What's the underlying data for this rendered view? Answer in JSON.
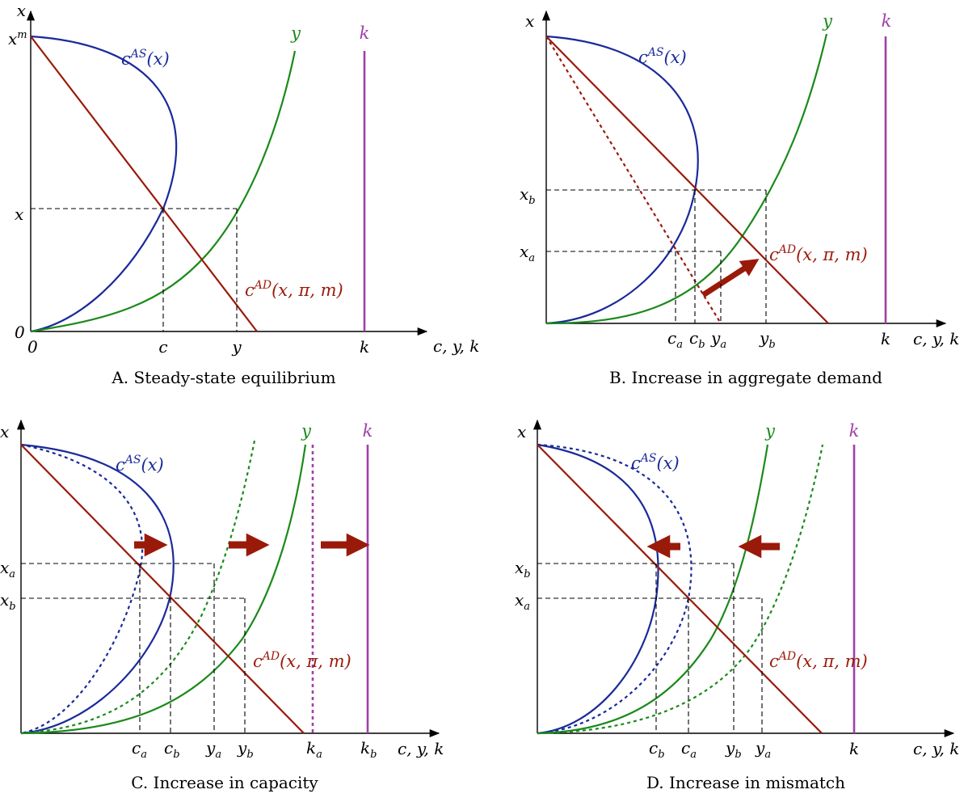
{
  "colors": {
    "aggregate_supply": "#1a2a9a",
    "output": "#1a8a1a",
    "aggregate_demand": "#9a1a0a",
    "capacity": "#a040a8"
  },
  "panels": {
    "a": {
      "caption": "A.  Steady-state equilibrium",
      "y_axis": "x",
      "x_axis": "c, y, k",
      "y_top": "x",
      "y_top_sup": "m",
      "y_mid": "x",
      "origin_y": "0",
      "origin_x": "0",
      "c_tick": "c",
      "y_tick": "y",
      "k_tick": "k",
      "cas": "c",
      "cas_sup": "AS",
      "cas_arg": "(x)",
      "cad": "c",
      "cad_sup": "AD",
      "cad_arg": "(x, π, m)",
      "y_curve": "y",
      "k_line": "k"
    },
    "b": {
      "caption": "B.  Increase in aggregate demand",
      "y_axis": "x",
      "x_axis": "c, y, k",
      "xb": "x",
      "xb_sub": "b",
      "xa": "x",
      "xa_sub": "a",
      "ca": "c",
      "ca_sub": "a",
      "cb": "c",
      "cb_sub": "b",
      "ya": "y",
      "ya_sub": "a",
      "yb": "y",
      "yb_sub": "b",
      "k_tick": "k",
      "cas": "c",
      "cas_sup": "AS",
      "cas_arg": "(x)",
      "cad": "c",
      "cad_sup": "AD",
      "cad_arg": "(x, π, m)",
      "y_curve": "y",
      "k_line": "k"
    },
    "c": {
      "caption": "C.  Increase in capacity",
      "y_axis": "x",
      "x_axis": "c, y, k",
      "xa": "x",
      "xa_sub": "a",
      "xb": "x",
      "xb_sub": "b",
      "ca": "c",
      "ca_sub": "a",
      "cb": "c",
      "cb_sub": "b",
      "ya": "y",
      "ya_sub": "a",
      "yb": "y",
      "yb_sub": "b",
      "ka": "k",
      "ka_sub": "a",
      "kb": "k",
      "kb_sub": "b",
      "cas": "c",
      "cas_sup": "AS",
      "cas_arg": "(x)",
      "cad": "c",
      "cad_sup": "AD",
      "cad_arg": "(x, π, m)",
      "y_curve": "y",
      "k_line": "k"
    },
    "d": {
      "caption": "D.  Increase in mismatch",
      "y_axis": "x",
      "x_axis": "c, y, k",
      "xb": "x",
      "xb_sub": "b",
      "xa": "x",
      "xa_sub": "a",
      "cb": "c",
      "cb_sub": "b",
      "ca": "c",
      "ca_sub": "a",
      "yb": "y",
      "yb_sub": "b",
      "ya": "y",
      "ya_sub": "a",
      "k_tick": "k",
      "cas": "c",
      "cas_sup": "AS",
      "cas_arg": "(x)",
      "cad": "c",
      "cad_sup": "AD",
      "cad_arg": "(x, π, m)",
      "y_curve": "y",
      "k_line": "k"
    }
  }
}
